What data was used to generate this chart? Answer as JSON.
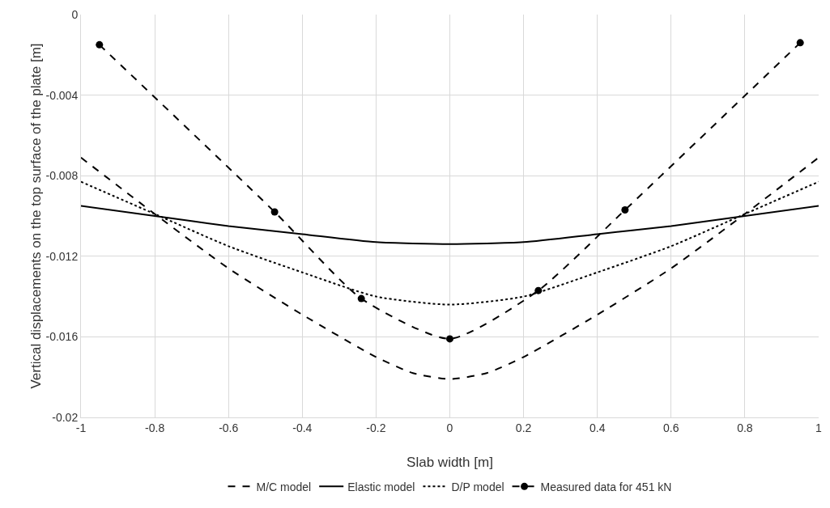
{
  "chart_data": {
    "type": "line",
    "xlabel": "Slab width [m]",
    "ylabel": "Vertical displacements on the top surface of the plate [m]",
    "xlim": [
      -1,
      1
    ],
    "xticks": [
      -1,
      -0.8,
      -0.6,
      -0.4,
      -0.2,
      0,
      0.2,
      0.4,
      0.6,
      0.8,
      1
    ],
    "ylim": [
      -0.02,
      0
    ],
    "yticks": [
      -0.02,
      -0.016,
      -0.012,
      -0.008,
      -0.004,
      0
    ],
    "grid": true,
    "legend": "bottom",
    "series": [
      {
        "name": "M/C model",
        "color": "#000000",
        "line_style": "dashed",
        "marker": "none",
        "x": [
          -1,
          -0.8,
          -0.6,
          -0.4,
          -0.2,
          -0.1,
          0,
          0.1,
          0.2,
          0.4,
          0.6,
          0.8,
          1
        ],
        "values": [
          -0.0071,
          -0.0099,
          -0.0126,
          -0.0149,
          -0.017,
          -0.0178,
          -0.0181,
          -0.0178,
          -0.017,
          -0.0149,
          -0.0126,
          -0.0099,
          -0.0071
        ]
      },
      {
        "name": "Elastic model",
        "color": "#000000",
        "line_style": "solid",
        "marker": "none",
        "x": [
          -1,
          -0.8,
          -0.6,
          -0.4,
          -0.2,
          0,
          0.2,
          0.4,
          0.6,
          0.8,
          1
        ],
        "values": [
          -0.0095,
          -0.01,
          -0.0105,
          -0.0109,
          -0.0113,
          -0.0114,
          -0.0113,
          -0.0109,
          -0.0105,
          -0.01,
          -0.0095
        ]
      },
      {
        "name": "D/P model",
        "color": "#000000",
        "line_style": "dotted",
        "marker": "none",
        "x": [
          -1,
          -0.8,
          -0.6,
          -0.4,
          -0.2,
          0,
          0.2,
          0.4,
          0.6,
          0.8,
          1
        ],
        "values": [
          -0.0083,
          -0.0099,
          -0.0115,
          -0.0128,
          -0.014,
          -0.0144,
          -0.014,
          -0.0128,
          -0.0115,
          -0.0099,
          -0.0083
        ]
      },
      {
        "name": "Measured data for 451 kN",
        "color": "#000000",
        "line_style": "dashed",
        "marker": "circle",
        "x": [
          -0.95,
          -0.475,
          -0.24,
          0,
          0.24,
          0.475,
          0.95
        ],
        "values": [
          -0.0015,
          -0.0098,
          -0.0141,
          -0.0161,
          -0.0137,
          -0.0097,
          -0.0014
        ]
      }
    ]
  }
}
